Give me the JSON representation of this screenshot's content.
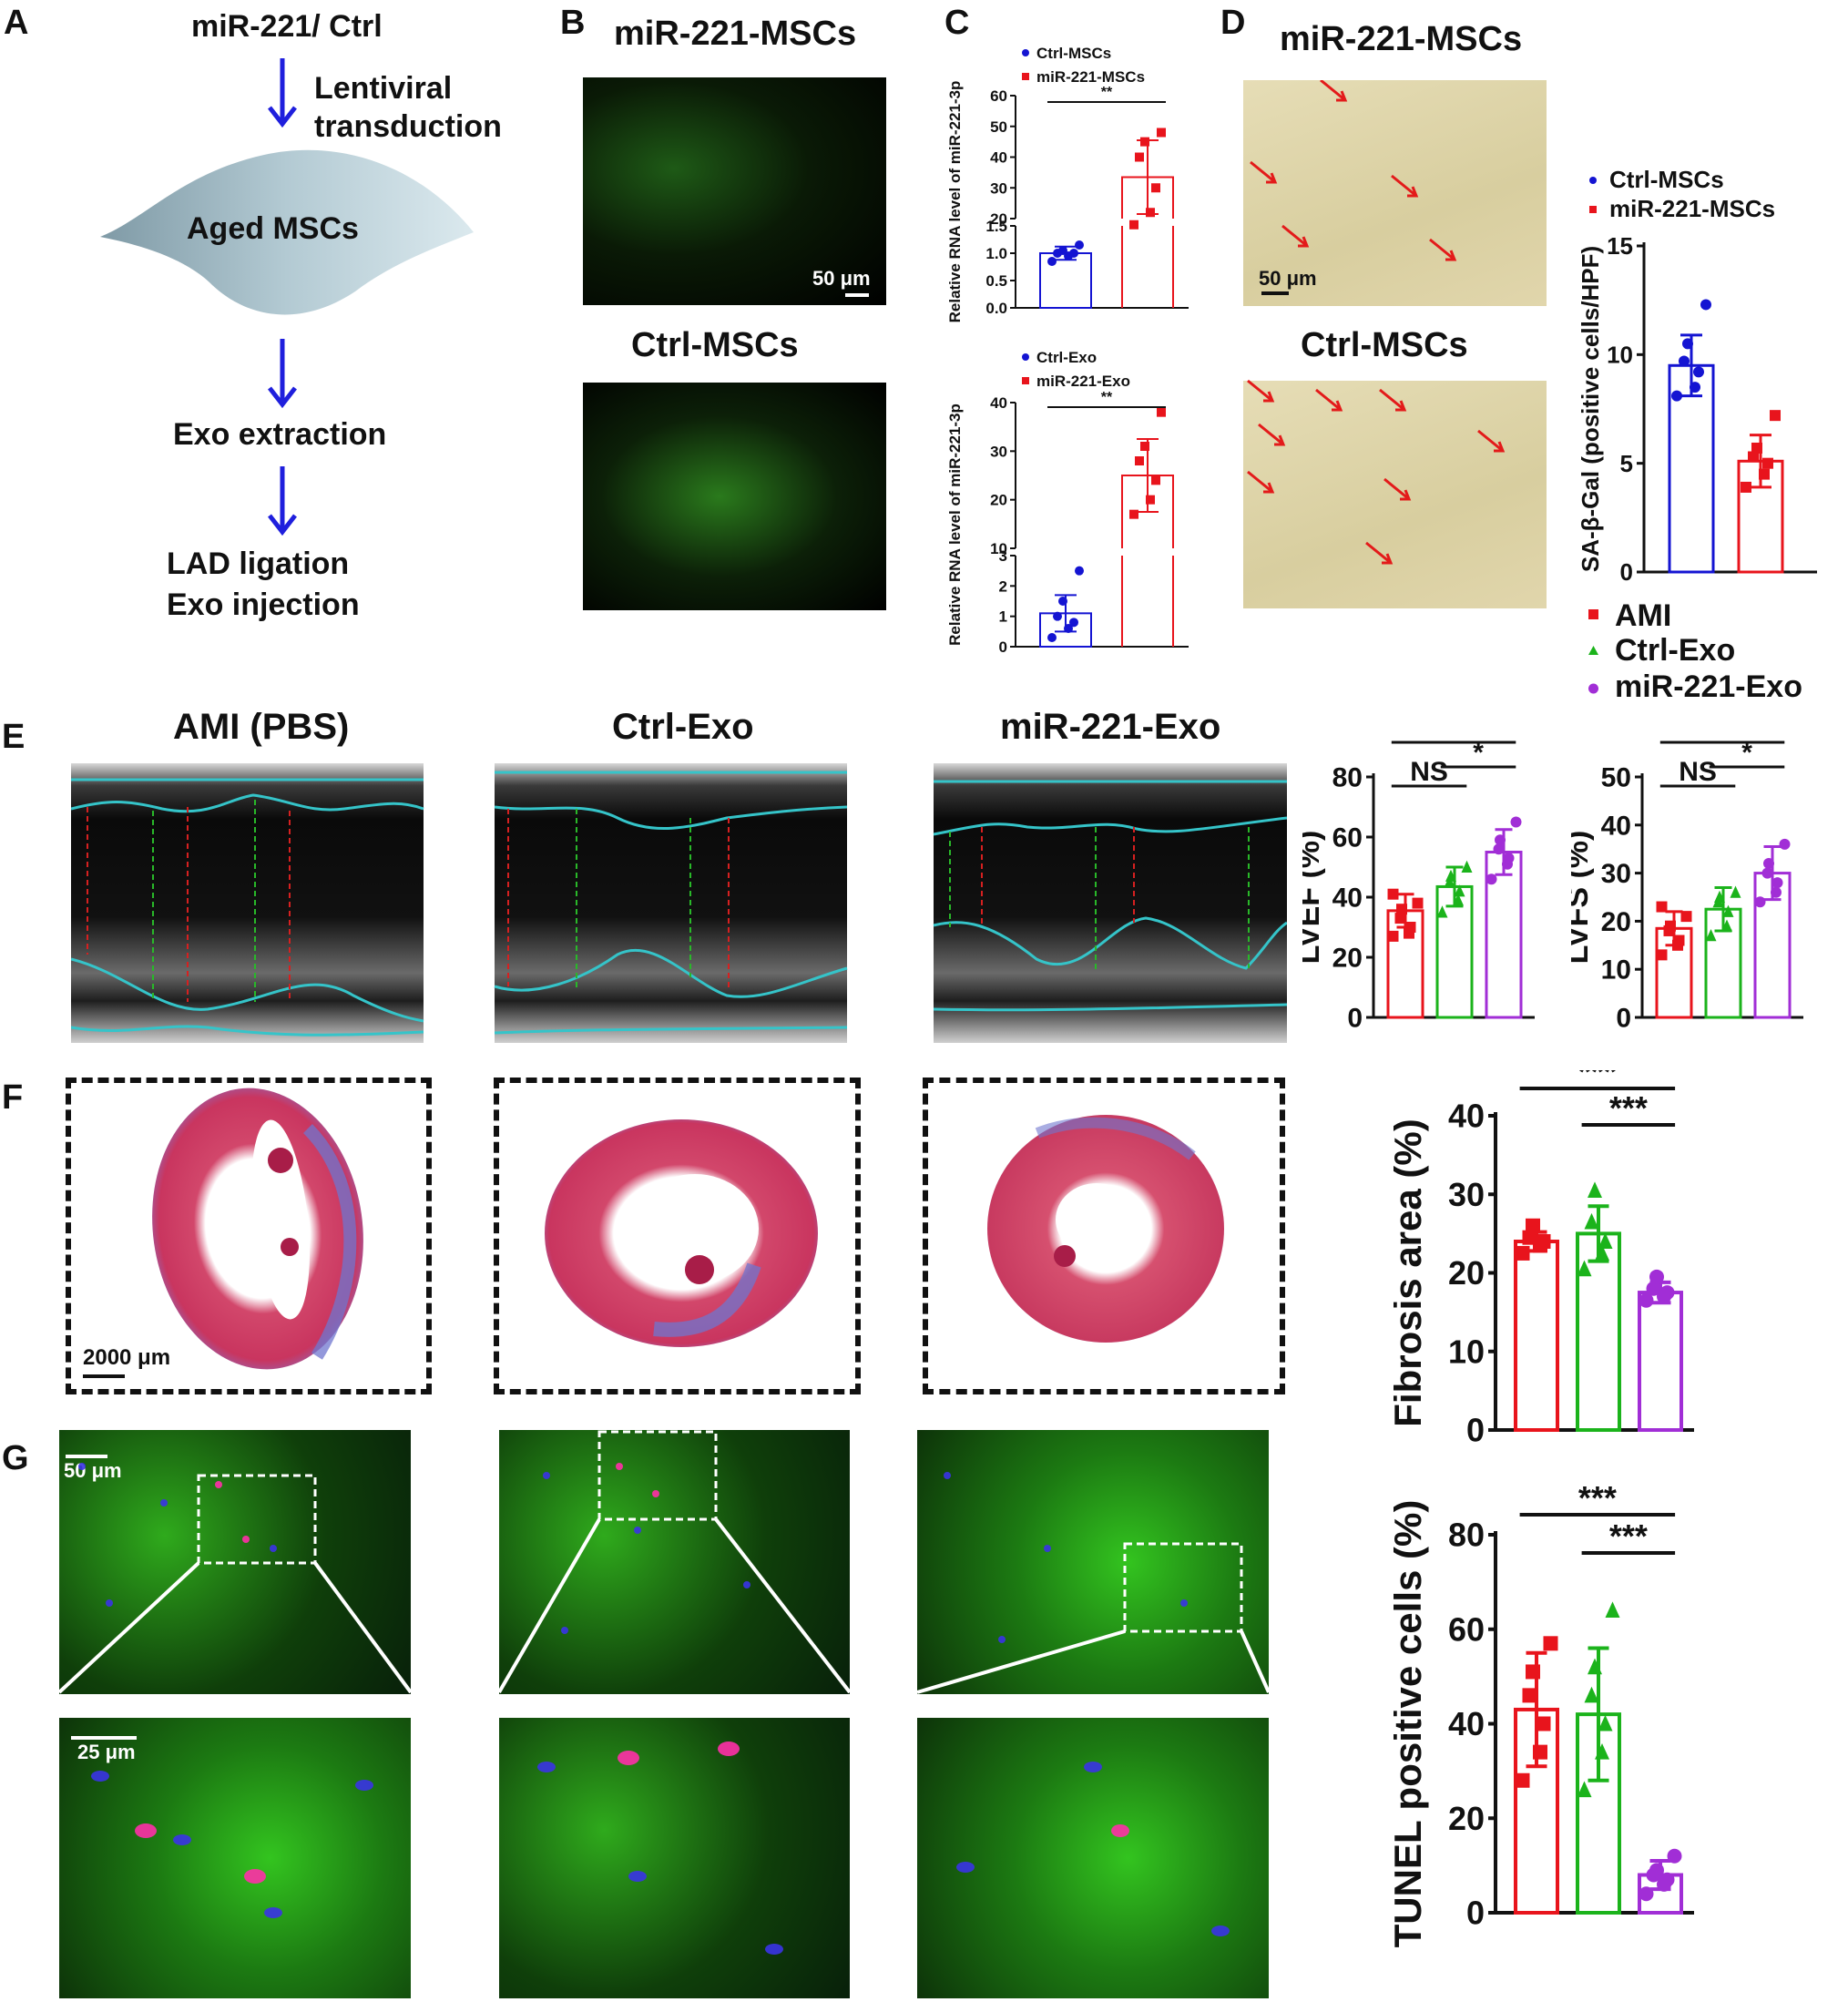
{
  "panels": {
    "A": {
      "label": "A",
      "flow": {
        "step1": "miR-221/ Ctrl",
        "arrow1_a": "Lentiviral",
        "arrow1_b": "transduction",
        "cell": "Aged MSCs",
        "step3": "Exo extraction",
        "step4_a": "LAD ligation",
        "step4_b": "Exo injection"
      }
    },
    "B": {
      "label": "B",
      "title_top": "miR-221-MSCs",
      "title_bottom": "Ctrl-MSCs",
      "scale": "50 μm"
    },
    "C": {
      "label": "C"
    },
    "D": {
      "label": "D",
      "title_top": "miR-221-MSCs",
      "title_bottom": "Ctrl-MSCs",
      "scale": "50 μm"
    },
    "E": {
      "label": "E",
      "titles": [
        "AMI (PBS)",
        "Ctrl-Exo",
        "miR-221-Exo"
      ]
    },
    "F": {
      "label": "F",
      "scale": "2000 μm"
    },
    "G": {
      "label": "G",
      "scale_top": "50 μm",
      "scale_bottom": "25 μm"
    }
  },
  "legend_groups": {
    "items": [
      "AMI",
      "Ctrl-Exo",
      "miR-221-Exo"
    ]
  },
  "colors": {
    "red": "#e8141c",
    "green": "#1bb31b",
    "purple": "#a12ed6",
    "blue": "#1414d2",
    "cyan": "#35c4c9",
    "arrow_blue": "#1f1fdd"
  },
  "chart_data": [
    {
      "id": "C-top",
      "type": "bar",
      "categories": [
        "Ctrl-MSCs",
        "miR-221-MSCs"
      ],
      "legend": [
        "Ctrl-MSCs",
        "miR-221-MSCs"
      ],
      "values": [
        1.0,
        33.5
      ],
      "errors": [
        0.12,
        12
      ],
      "points": [
        [
          0.85,
          0.95,
          1.0,
          1.0,
          1.05,
          1.15
        ],
        [
          18,
          22,
          30,
          40,
          45,
          48
        ]
      ],
      "ylabel": "Relative RNA level of miR-221-3p",
      "yticks_low": [
        "0.0",
        "0.5",
        "1.0",
        "1.5"
      ],
      "yticks_high": [
        "20",
        "30",
        "40",
        "50",
        "60"
      ],
      "broken_axis": true,
      "significance": "**"
    },
    {
      "id": "C-bottom",
      "type": "bar",
      "categories": [
        "Ctrl-Exo",
        "miR-221-Exo"
      ],
      "legend": [
        "Ctrl-Exo",
        "miR-221-Exo"
      ],
      "values": [
        1.1,
        25
      ],
      "errors": [
        0.6,
        7.5
      ],
      "points": [
        [
          0.3,
          0.6,
          0.8,
          1.0,
          1.5,
          2.5
        ],
        [
          17,
          20,
          24,
          28,
          31,
          38
        ]
      ],
      "ylabel": "Relative RNA level of miR-221-3p",
      "yticks_low": [
        "0",
        "1",
        "2",
        "3"
      ],
      "yticks_high": [
        "10",
        "20",
        "30",
        "40"
      ],
      "broken_axis": true,
      "significance": "**"
    },
    {
      "id": "D-right",
      "type": "bar",
      "categories": [
        "Ctrl-MSCs",
        "miR-221-MSCs"
      ],
      "legend": [
        "Ctrl-MSCs",
        "miR-221-MSCs"
      ],
      "values": [
        9.5,
        5.1
      ],
      "errors": [
        1.4,
        1.2
      ],
      "points": [
        [
          8.1,
          8.5,
          9.2,
          9.7,
          10.5,
          12.3
        ],
        [
          3.9,
          4.5,
          5.0,
          5.3,
          5.7,
          7.2
        ]
      ],
      "ylabel": "SA-β-Gal (positive cells/HPF)",
      "ylim": [
        0,
        15
      ],
      "yticks": [
        "0",
        "5",
        "10",
        "15"
      ],
      "significance": "***"
    },
    {
      "id": "E-LVEF",
      "type": "bar",
      "categories": [
        "AMI",
        "Ctrl-Exo",
        "miR-221-Exo"
      ],
      "values": [
        35.5,
        43.5,
        55
      ],
      "errors": [
        5.5,
        6.5,
        7.5
      ],
      "points": [
        [
          27,
          28,
          30,
          33,
          36,
          38,
          41
        ],
        [
          35,
          39,
          42,
          45,
          47,
          50
        ],
        [
          46,
          51,
          53,
          56,
          59,
          65
        ]
      ],
      "ylabel": "LVEF (%)",
      "ylim": [
        0,
        80
      ],
      "yticks": [
        "0",
        "20",
        "40",
        "60",
        "80"
      ],
      "sig": [
        {
          "label": "NS",
          "a": 0,
          "b": 1
        },
        {
          "label": "*",
          "a": 1,
          "b": 2
        },
        {
          "label": "***",
          "a": 0,
          "b": 2
        }
      ]
    },
    {
      "id": "E-LVFS",
      "type": "bar",
      "categories": [
        "AMI",
        "Ctrl-Exo",
        "miR-221-Exo"
      ],
      "values": [
        18.5,
        22.5,
        30
      ],
      "errors": [
        3.5,
        4.5,
        5.5
      ],
      "points": [
        [
          13,
          15,
          16,
          18,
          19,
          21,
          23
        ],
        [
          17,
          19,
          22,
          24,
          25,
          26
        ],
        [
          24,
          26,
          28,
          30,
          32,
          36
        ]
      ],
      "ylabel": "LVFS (%)",
      "ylim": [
        0,
        50
      ],
      "yticks": [
        "0",
        "10",
        "20",
        "30",
        "40",
        "50"
      ],
      "sig": [
        {
          "label": "NS",
          "a": 0,
          "b": 1
        },
        {
          "label": "*",
          "a": 1,
          "b": 2
        },
        {
          "label": "***",
          "a": 0,
          "b": 2
        }
      ]
    },
    {
      "id": "F-right",
      "type": "bar",
      "categories": [
        "AMI",
        "Ctrl-Exo",
        "miR-221-Exo"
      ],
      "values": [
        24,
        25,
        17.5
      ],
      "errors": [
        1.2,
        3.5,
        1.3
      ],
      "points": [
        [
          22.5,
          23.5,
          24,
          24.5,
          26
        ],
        [
          20.5,
          22.5,
          24,
          26.5,
          30.5
        ],
        [
          16.5,
          17,
          17.5,
          18,
          19.5
        ]
      ],
      "ylabel": "Fibrosis area (%)",
      "ylim": [
        0,
        40
      ],
      "yticks": [
        "0",
        "10",
        "20",
        "30",
        "40"
      ],
      "sig": [
        {
          "label": "***",
          "a": 1,
          "b": 2
        },
        {
          "label": "***",
          "a": 0,
          "b": 2
        }
      ]
    },
    {
      "id": "G-right",
      "type": "bar",
      "categories": [
        "AMI",
        "Ctrl-Exo",
        "miR-221-Exo"
      ],
      "values": [
        43,
        42,
        8
      ],
      "errors": [
        12,
        14,
        3
      ],
      "points": [
        [
          28,
          34,
          40,
          46,
          51,
          57
        ],
        [
          26,
          34,
          40,
          46,
          52,
          64
        ],
        [
          4,
          6,
          7,
          8,
          9,
          12
        ]
      ],
      "ylabel": "TUNEL positive cells (%)",
      "ylim": [
        0,
        80
      ],
      "yticks": [
        "0",
        "20",
        "40",
        "60",
        "80"
      ],
      "sig": [
        {
          "label": "***",
          "a": 1,
          "b": 2
        },
        {
          "label": "***",
          "a": 0,
          "b": 2
        }
      ]
    }
  ]
}
